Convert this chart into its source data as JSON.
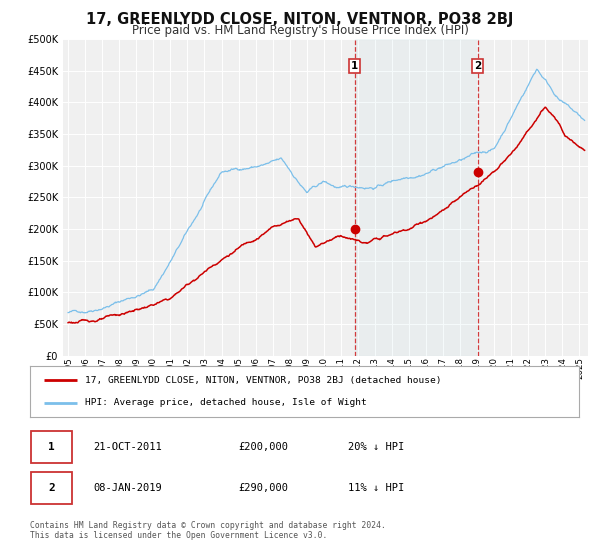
{
  "title": "17, GREENLYDD CLOSE, NITON, VENTNOR, PO38 2BJ",
  "subtitle": "Price paid vs. HM Land Registry's House Price Index (HPI)",
  "ylim": [
    0,
    500000
  ],
  "xlim_start": 1994.7,
  "xlim_end": 2025.5,
  "yticks": [
    0,
    50000,
    100000,
    150000,
    200000,
    250000,
    300000,
    350000,
    400000,
    450000,
    500000
  ],
  "ytick_labels": [
    "£0",
    "£50K",
    "£100K",
    "£150K",
    "£200K",
    "£250K",
    "£300K",
    "£350K",
    "£400K",
    "£450K",
    "£500K"
  ],
  "hpi_color": "#7bbfea",
  "price_color": "#cc0000",
  "marker_color": "#cc0000",
  "transaction1_date": 2011.81,
  "transaction1_price": 200000,
  "transaction2_date": 2019.03,
  "transaction2_price": 290000,
  "legend_line1": "17, GREENLYDD CLOSE, NITON, VENTNOR, PO38 2BJ (detached house)",
  "legend_line2": "HPI: Average price, detached house, Isle of Wight",
  "table_row1": [
    "1",
    "21-OCT-2011",
    "£200,000",
    "20% ↓ HPI"
  ],
  "table_row2": [
    "2",
    "08-JAN-2019",
    "£290,000",
    "11% ↓ HPI"
  ],
  "footnote1": "Contains HM Land Registry data © Crown copyright and database right 2024.",
  "footnote2": "This data is licensed under the Open Government Licence v3.0.",
  "background_color": "#ffffff",
  "plot_bg_color": "#f0f0f0",
  "grid_color": "#ffffff",
  "title_fontsize": 10.5,
  "subtitle_fontsize": 8.5
}
